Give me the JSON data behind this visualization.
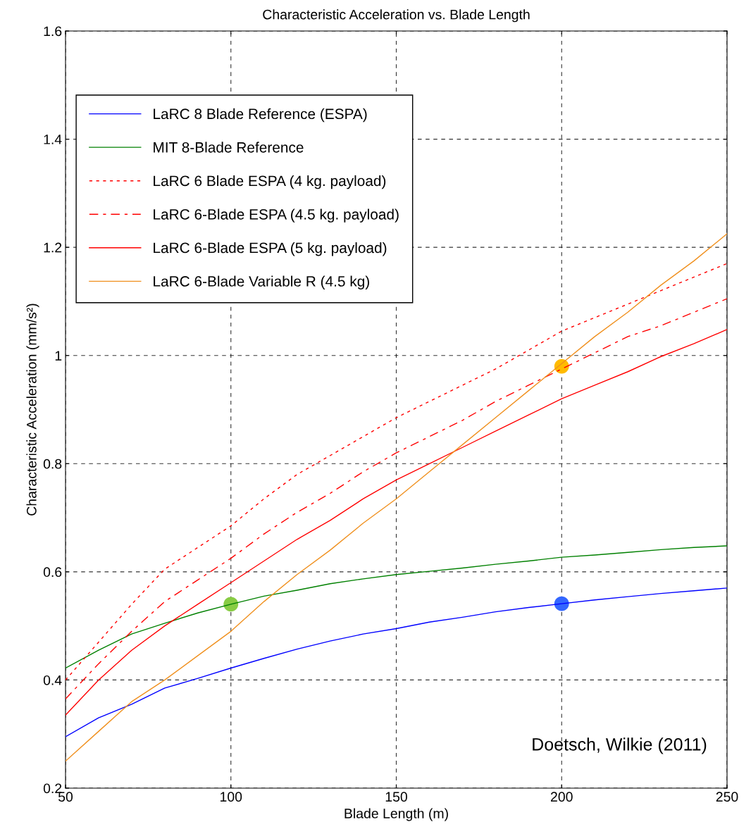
{
  "chart_data": {
    "type": "line",
    "title": "Characteristic Acceleration vs. Blade Length",
    "xlabel": "Blade Length (m)",
    "ylabel": "Characteristic Acceleration (mm/s²)",
    "x": [
      50,
      60,
      70,
      80,
      90,
      100,
      110,
      120,
      130,
      140,
      150,
      160,
      170,
      180,
      190,
      200,
      210,
      220,
      230,
      240,
      250
    ],
    "xlim": [
      50,
      250
    ],
    "xticks": [
      50,
      100,
      150,
      200,
      250
    ],
    "ylim": [
      0.2,
      1.6
    ],
    "yticks": [
      0.2,
      0.4,
      0.6,
      0.8,
      1,
      1.2,
      1.4,
      1.6
    ],
    "grid": true,
    "legend": "top left",
    "marker": "none",
    "series": [
      {
        "name": "LaRC 8 Blade Reference (ESPA)",
        "color": "#0000ff",
        "line_style": "solid",
        "values": [
          0.295,
          0.33,
          0.355,
          0.385,
          0.403,
          0.422,
          0.44,
          0.457,
          0.472,
          0.485,
          0.495,
          0.507,
          0.516,
          0.526,
          0.534,
          0.541,
          0.548,
          0.554,
          0.56,
          0.565,
          0.57
        ]
      },
      {
        "name": "MIT 8-Blade Reference",
        "color": "#008000",
        "line_style": "solid",
        "values": [
          0.422,
          0.455,
          0.485,
          0.505,
          0.524,
          0.54,
          0.555,
          0.566,
          0.578,
          0.587,
          0.595,
          0.601,
          0.607,
          0.614,
          0.62,
          0.627,
          0.631,
          0.636,
          0.641,
          0.645,
          0.648
        ]
      },
      {
        "name": "LaRC 6 Blade ESPA (4 kg. payload)",
        "color": "#ff0000",
        "line_style": "dotted",
        "values": [
          0.4,
          0.47,
          0.54,
          0.605,
          0.645,
          0.685,
          0.735,
          0.78,
          0.815,
          0.85,
          0.885,
          0.915,
          0.945,
          0.975,
          1.01,
          1.045,
          1.07,
          1.095,
          1.12,
          1.145,
          1.17
        ]
      },
      {
        "name": "LaRC 6-Blade ESPA (4.5 kg. payload)",
        "color": "#ff0000",
        "line_style": "dashed",
        "values": [
          0.365,
          0.43,
          0.49,
          0.545,
          0.585,
          0.625,
          0.67,
          0.71,
          0.745,
          0.785,
          0.82,
          0.85,
          0.88,
          0.915,
          0.945,
          0.975,
          1.005,
          1.035,
          1.055,
          1.08,
          1.105
        ]
      },
      {
        "name": "LaRC 6-Blade ESPA (5 kg. payload)",
        "color": "#ff0000",
        "line_style": "solid",
        "values": [
          0.335,
          0.4,
          0.455,
          0.5,
          0.54,
          0.58,
          0.62,
          0.66,
          0.695,
          0.735,
          0.77,
          0.8,
          0.83,
          0.86,
          0.89,
          0.92,
          0.945,
          0.97,
          0.998,
          1.022,
          1.048
        ]
      },
      {
        "name": "LaRC 6-Blade Variable R (4.5 kg)",
        "color": "#f0901e",
        "line_style": "solid",
        "values": [
          0.25,
          0.305,
          0.36,
          0.4,
          0.445,
          0.49,
          0.545,
          0.595,
          0.64,
          0.69,
          0.735,
          0.785,
          0.835,
          0.885,
          0.935,
          0.985,
          1.035,
          1.08,
          1.13,
          1.175,
          1.225
        ]
      },
      {
        "type": "scatter",
        "marker": "circle",
        "color": "#88cc44",
        "values": [
          null,
          null,
          null,
          null,
          null,
          0.54,
          null,
          null,
          null,
          null,
          null,
          null,
          null,
          null,
          null,
          null,
          null,
          null,
          null,
          null,
          null
        ]
      },
      {
        "type": "scatter",
        "marker": "circle",
        "color": "#3366ff",
        "values": [
          null,
          null,
          null,
          null,
          null,
          null,
          null,
          null,
          null,
          null,
          null,
          null,
          null,
          null,
          null,
          0.541,
          null,
          null,
          null,
          null,
          null
        ]
      },
      {
        "type": "scatter",
        "marker": "circle",
        "color": "#ffbb00",
        "values": [
          null,
          null,
          null,
          null,
          null,
          null,
          null,
          null,
          null,
          null,
          null,
          null,
          null,
          null,
          null,
          0.98,
          null,
          null,
          null,
          null,
          null
        ]
      }
    ],
    "annotations": [
      "Doetsch, Wilkie (2011)"
    ]
  }
}
